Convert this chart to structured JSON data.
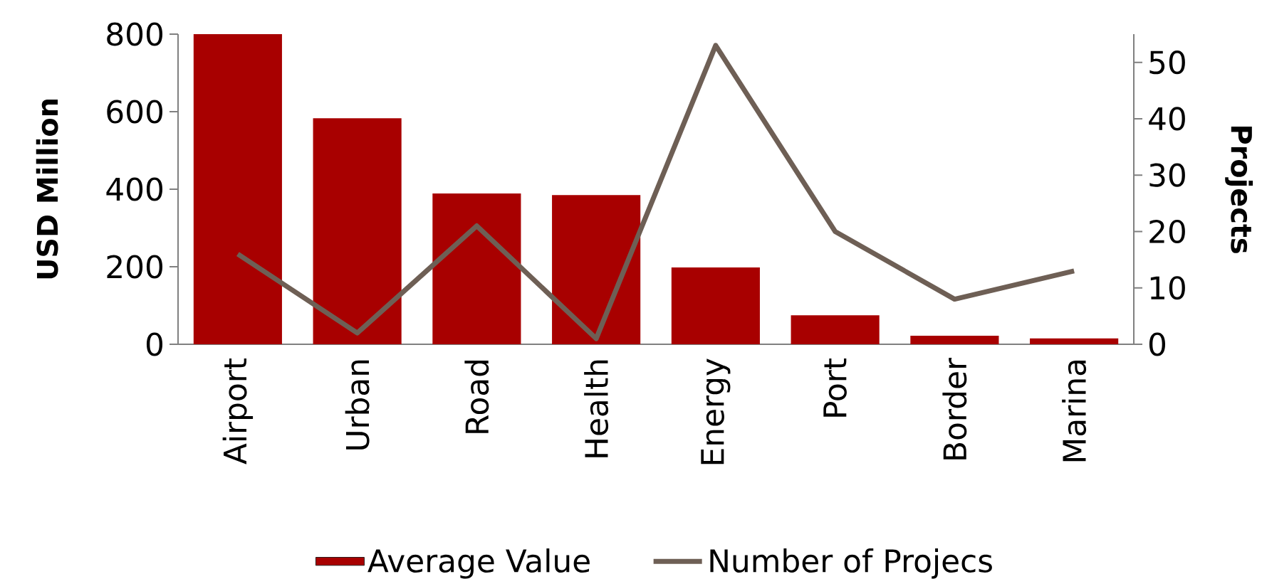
{
  "chart_data": {
    "type": "bar",
    "ylabel": "USD Million",
    "y2label": "Projects",
    "categories": [
      "Airport",
      "Urban",
      "Road",
      "Health",
      "Energy",
      "Port",
      "Border",
      "Marina"
    ],
    "series": [
      {
        "name": "Average Value",
        "color": "#a80000",
        "values": [
          800,
          583,
          389,
          385,
          198,
          75,
          22,
          15
        ]
      },
      {
        "name": "Number of Projecs",
        "type": "line",
        "axis": "y2",
        "color": "#6e5f55",
        "values": [
          16,
          2,
          21,
          1,
          53,
          20,
          8,
          13
        ]
      }
    ],
    "ylim": [
      0,
      800
    ],
    "yticks": [
      0,
      200,
      400,
      600,
      800
    ],
    "y2lim": [
      0,
      55
    ],
    "y2ticks": [
      0,
      10,
      20,
      30,
      40,
      50
    ],
    "legend": "bottom",
    "grid": false,
    "marker": "none",
    "line_style": "solid"
  }
}
